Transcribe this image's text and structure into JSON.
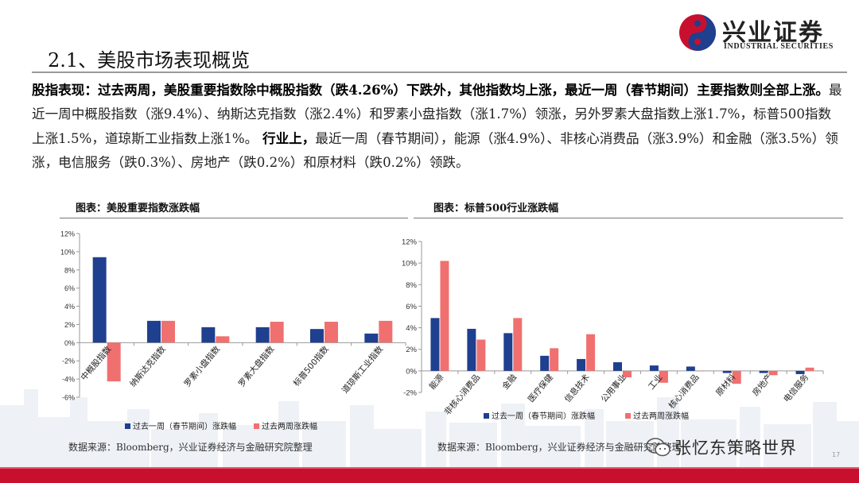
{
  "brand": {
    "name_cn": "兴业证券",
    "name_en": "INDUSTRIAL SECURITIES",
    "colors": {
      "red": "#c8102e",
      "navy": "#1f3f8f",
      "gray": "#9a9a9a"
    }
  },
  "title": "2.1、美股市场表现概览",
  "paragraph": {
    "bold1": "股指表现：过去两周，美股重要指数除中概股指数（跌4.26%）下跌外，其他指数均上涨，最近一周（春节期间）主要指数则全部上涨。",
    "normal1": "最近一周中概股指数（涨9.4%）、纳斯达克指数（涨2.4%）和罗素小盘指数（涨1.7%）领涨，另外罗素大盘指数上涨1.7%，标普500指数上涨1.5%，道琼斯工业指数上涨1%。",
    "bold2": " 行业上，",
    "normal2": "最近一周（春节期间），能源（涨4.9%）、非核心消费品（涨3.9%）和金融（涨3.5%）领涨，电信服务（跌0.3%）、房地产（跌0.2%）和原材料（跌0.2%）领跌。"
  },
  "chart_data": [
    {
      "type": "bar",
      "title": "图表：美股重要指数涨跌幅",
      "categories": [
        "中概股指数",
        "纳斯达克指数",
        "罗素小盘指数",
        "罗素大盘指数",
        "标普500指数",
        "道琼斯工业指数"
      ],
      "series": [
        {
          "name": "过去一周（春节期间）涨跌幅",
          "color": "#1f3f8f",
          "values": [
            9.4,
            2.4,
            1.7,
            1.7,
            1.5,
            1.0
          ]
        },
        {
          "name": "过去两周涨跌幅",
          "color": "#f07070",
          "values": [
            -4.26,
            2.4,
            0.7,
            2.3,
            2.3,
            2.4
          ]
        }
      ],
      "ylim": [
        -6,
        12
      ],
      "yticks": [
        "-6%",
        "-4%",
        "-2%",
        "0%",
        "2%",
        "4%",
        "6%",
        "8%",
        "10%",
        "12%"
      ],
      "xlabel": "",
      "ylabel": "",
      "legend": "bottom",
      "source": "数据来源：Bloomberg，兴业证券经济与金融研究院整理"
    },
    {
      "type": "bar",
      "title": "图表：标普500行业涨跌幅",
      "categories": [
        "能源",
        "非核心消费品",
        "金融",
        "医疗保健",
        "信息技术",
        "公用事业",
        "工业",
        "核心消费品",
        "原材料",
        "房地产",
        "电信服务"
      ],
      "series": [
        {
          "name": "过去一周（春节期间）涨跌幅",
          "color": "#1f3f8f",
          "values": [
            4.9,
            3.9,
            3.5,
            1.4,
            1.1,
            0.8,
            0.5,
            0.4,
            -0.2,
            -0.2,
            -0.3
          ]
        },
        {
          "name": "过去两周涨跌幅",
          "color": "#f07070",
          "values": [
            10.2,
            2.9,
            4.9,
            2.1,
            3.4,
            -0.6,
            -1.1,
            0.0,
            -1.2,
            -0.4,
            0.3
          ]
        }
      ],
      "ylim": [
        -2,
        12
      ],
      "yticks": [
        "-2%",
        "0%",
        "2%",
        "4%",
        "6%",
        "8%",
        "10%",
        "12%"
      ],
      "xlabel": "",
      "ylabel": "",
      "legend": "bottom",
      "source": "数据来源：Bloomberg，兴业证券经济与金融研究院整理"
    }
  ],
  "watermark": "张忆东策略世界",
  "page_number": "17"
}
